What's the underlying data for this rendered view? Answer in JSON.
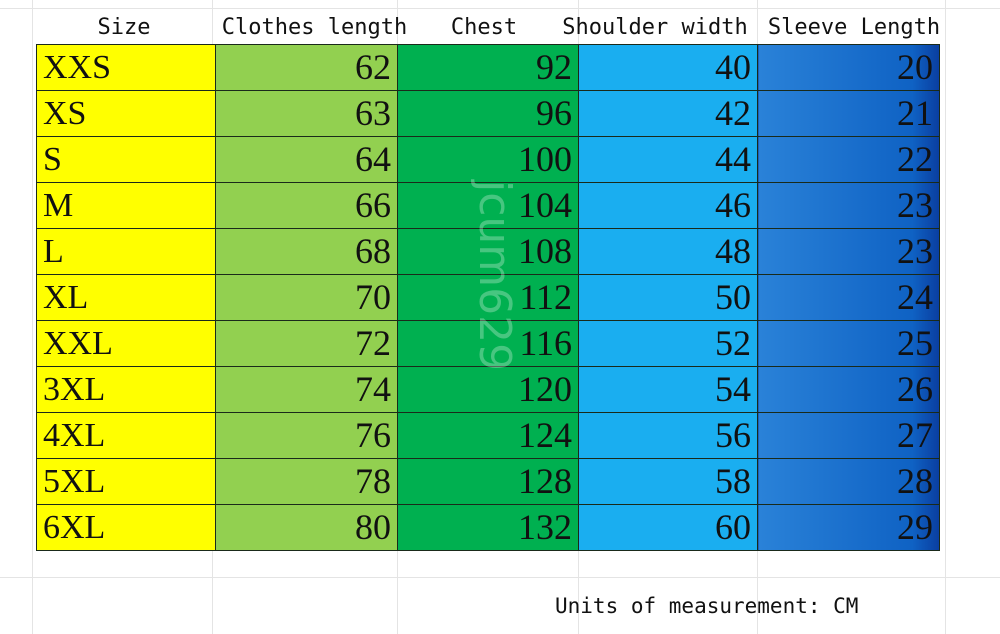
{
  "headers": [
    "Size",
    "Clothes length",
    "Chest",
    "Shoulder width",
    "Sleeve Length"
  ],
  "rows": [
    [
      "XXS",
      "62",
      "92",
      "40",
      "20"
    ],
    [
      "XS",
      "63",
      "96",
      "42",
      "21"
    ],
    [
      "S",
      "64",
      "100",
      "44",
      "22"
    ],
    [
      "M",
      "66",
      "104",
      "46",
      "23"
    ],
    [
      "L",
      "68",
      "108",
      "48",
      "23"
    ],
    [
      "XL",
      "70",
      "112",
      "50",
      "24"
    ],
    [
      "XXL",
      "72",
      "116",
      "52",
      "25"
    ],
    [
      "3XL",
      "74",
      "120",
      "54",
      "26"
    ],
    [
      "4XL",
      "76",
      "124",
      "56",
      "27"
    ],
    [
      "5XL",
      "78",
      "128",
      "58",
      "28"
    ],
    [
      "6XL",
      "80",
      "132",
      "60",
      "29"
    ]
  ],
  "units": "Units of measurement: CM",
  "watermark": "jcum629",
  "colors": {
    "size": "#ffff00",
    "clothes_length": "#92d050",
    "chest": "#00b050",
    "shoulder_width": "#1aaef0",
    "sleeve_length": "#1565c8"
  }
}
